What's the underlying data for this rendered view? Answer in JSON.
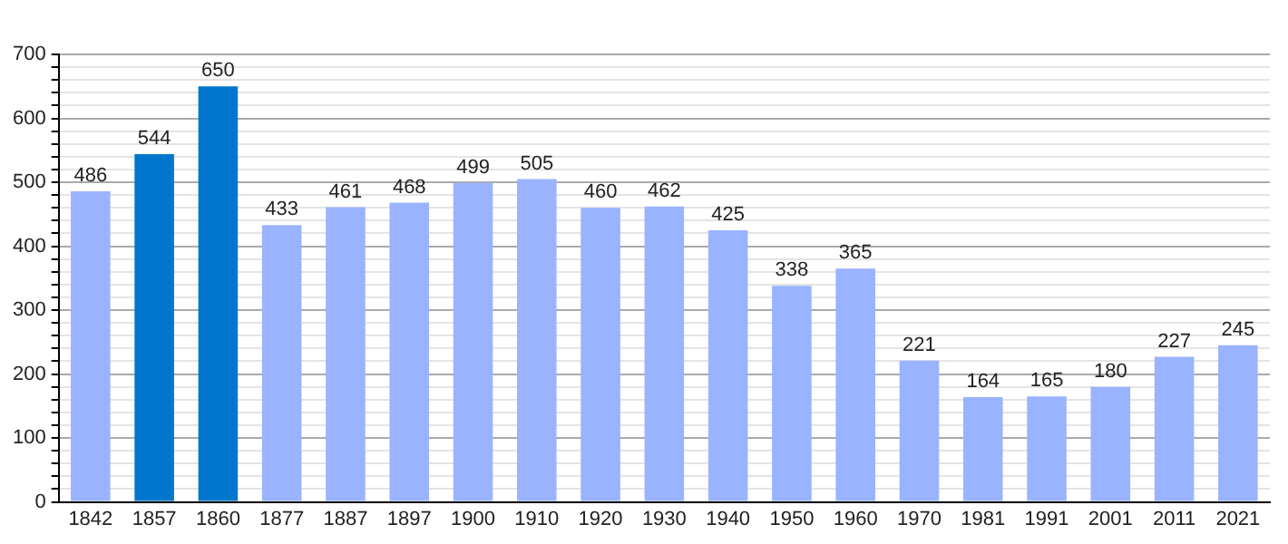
{
  "chart_data": {
    "type": "bar",
    "categories": [
      "1842",
      "1857",
      "1860",
      "1877",
      "1887",
      "1897",
      "1900",
      "1910",
      "1920",
      "1930",
      "1940",
      "1950",
      "1960",
      "1970",
      "1981",
      "1991",
      "2001",
      "2011",
      "2021"
    ],
    "values": [
      486,
      544,
      650,
      433,
      461,
      468,
      499,
      505,
      460,
      462,
      425,
      338,
      365,
      221,
      164,
      165,
      180,
      227,
      245
    ],
    "colors": [
      "#99b3ff",
      "#0077cc",
      "#0077cc",
      "#99b3ff",
      "#99b3ff",
      "#99b3ff",
      "#99b3ff",
      "#99b3ff",
      "#99b3ff",
      "#99b3ff",
      "#99b3ff",
      "#99b3ff",
      "#99b3ff",
      "#99b3ff",
      "#99b3ff",
      "#99b3ff",
      "#99b3ff",
      "#99b3ff",
      "#99b3ff"
    ],
    "ylim": [
      0,
      700
    ],
    "yticks": [
      0,
      {
        "value": 20,
        "label": null
      },
      {
        "value": 40,
        "label": null
      },
      {
        "value": 60,
        "label": null
      },
      {
        "value": 80,
        "label": null
      },
      100,
      {
        "value": 120,
        "label": null
      },
      {
        "value": 140,
        "label": null
      },
      {
        "value": 160,
        "label": null
      },
      {
        "value": 180,
        "label": null
      },
      200,
      {
        "value": 220,
        "label": null
      },
      {
        "value": 240,
        "label": null
      },
      {
        "value": 260,
        "label": null
      },
      {
        "value": 280,
        "label": null
      },
      300,
      {
        "value": 320,
        "label": null
      },
      {
        "value": 340,
        "label": null
      },
      {
        "value": 360,
        "label": null
      },
      {
        "value": 380,
        "label": null
      },
      400,
      {
        "value": 420,
        "label": null
      },
      {
        "value": 440,
        "label": null
      },
      {
        "value": 460,
        "label": null
      },
      {
        "value": 480,
        "label": null
      },
      500,
      {
        "value": 520,
        "label": null
      },
      {
        "value": 540,
        "label": null
      },
      {
        "value": 560,
        "label": null
      },
      {
        "value": 580,
        "label": null
      },
      600,
      {
        "value": 620,
        "label": null
      },
      {
        "value": 640,
        "label": null
      },
      {
        "value": 660,
        "label": null
      },
      {
        "value": 680,
        "label": null
      },
      700
    ],
    "grid": "y",
    "data_labels": true,
    "legend": false
  }
}
